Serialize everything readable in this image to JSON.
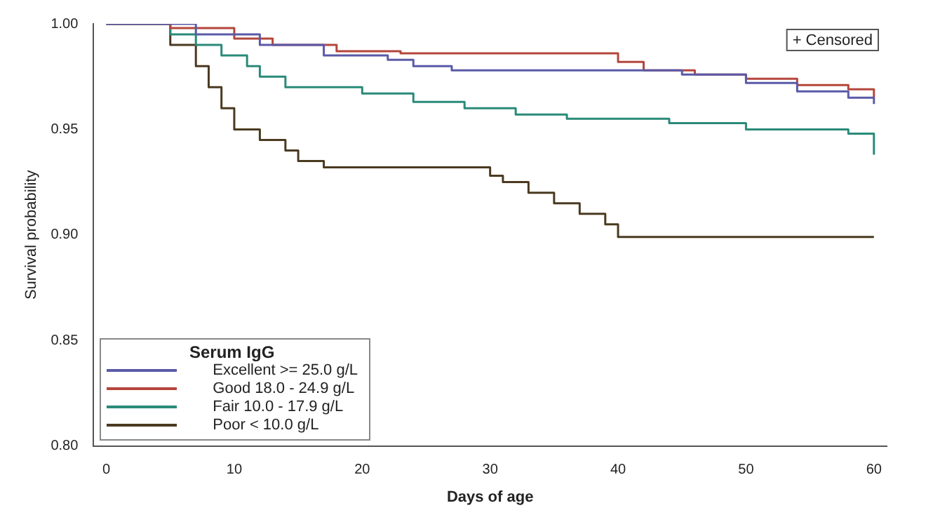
{
  "chart_data": {
    "type": "step",
    "xlabel": "Days of age",
    "ylabel": "Survival probability",
    "legend_title": "Serum IgG",
    "legend": "bottom left",
    "xlim": [
      -1,
      61
    ],
    "xticks": [
      0,
      10,
      20,
      30,
      40,
      50,
      60
    ],
    "ylim": [
      0.8,
      1.0
    ],
    "yticks": [
      {
        "value": 0.8,
        "label": "0.80"
      },
      {
        "value": 0.85,
        "label": "0.85"
      },
      {
        "value": 0.9,
        "label": "0.90"
      },
      {
        "value": 0.95,
        "label": "0.95"
      },
      {
        "value": 1.0,
        "label": "1.00"
      }
    ],
    "annotations": [
      "+ Censored"
    ],
    "series": [
      {
        "name": "Excellent >= 25.0 g/L",
        "color": "#5a5aa8",
        "x": [
          0,
          7,
          12,
          17,
          22,
          24,
          27,
          45,
          50,
          54,
          58,
          60
        ],
        "values": [
          1.0,
          0.995,
          0.99,
          0.985,
          0.983,
          0.98,
          0.978,
          0.976,
          0.972,
          0.968,
          0.965,
          0.962
        ]
      },
      {
        "name": "Good 18.0 - 24.9 g/L",
        "color": "#b4463c",
        "x": [
          0,
          5,
          10,
          13,
          18,
          23,
          40,
          42,
          46,
          50,
          54,
          58,
          60
        ],
        "values": [
          1.0,
          0.998,
          0.993,
          0.99,
          0.987,
          0.986,
          0.982,
          0.978,
          0.976,
          0.974,
          0.971,
          0.969,
          0.965
        ]
      },
      {
        "name": "Fair 10.0 - 17.9 g/L",
        "color": "#2a8a78",
        "x": [
          0,
          5,
          7,
          9,
          11,
          12,
          14,
          20,
          24,
          28,
          32,
          36,
          44,
          50,
          58,
          60
        ],
        "values": [
          1.0,
          0.995,
          0.99,
          0.985,
          0.98,
          0.975,
          0.97,
          0.967,
          0.963,
          0.96,
          0.957,
          0.955,
          0.953,
          0.95,
          0.948,
          0.938
        ]
      },
      {
        "name": "Poor < 10.0 g/L",
        "color": "#4a3a20",
        "x": [
          0,
          5,
          7,
          8,
          9,
          10,
          12,
          14,
          15,
          17,
          30,
          31,
          33,
          35,
          37,
          39,
          40,
          60
        ],
        "values": [
          1.0,
          0.99,
          0.98,
          0.97,
          0.96,
          0.95,
          0.945,
          0.94,
          0.935,
          0.932,
          0.928,
          0.925,
          0.92,
          0.915,
          0.91,
          0.905,
          0.899,
          0.899
        ]
      }
    ]
  }
}
